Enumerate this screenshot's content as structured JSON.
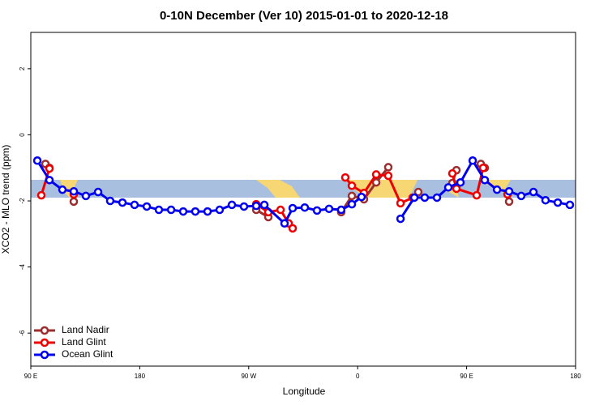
{
  "chart_data": {
    "type": "line",
    "title": "0-10N December (Ver 10)   2015-01-01 to 2020-12-18",
    "x_label": "Longitude",
    "y_label": "XCO2 - MLO trend (ppm)",
    "xlim": [
      90,
      540
    ],
    "xticks": [
      {
        "value": 90,
        "label": "90 E"
      },
      {
        "value": 180,
        "label": "180"
      },
      {
        "value": 270,
        "label": "90 W"
      },
      {
        "value": 360,
        "label": "0"
      },
      {
        "value": 450,
        "label": "90 E"
      },
      {
        "value": 540,
        "label": "180"
      }
    ],
    "ylim": [
      -7,
      3.1
    ],
    "yticks": [
      -6,
      -4,
      -2,
      0,
      2
    ],
    "legend": "bottom-left",
    "series": [
      {
        "name": "Land Nadir",
        "color": "#9b2f2f",
        "x": [
          102.1,
          105.4,
          115,
          125.5,
          200,
          276.2,
          286.2,
          300,
          346.4,
          355.2,
          365.2,
          375.3,
          385.3,
          400,
          410.1,
          425,
          438.2,
          441.6,
          450,
          461.7,
          465,
          475,
          485.1
        ],
        "values": [
          -0.88,
          -1.0,
          null,
          -2.02,
          null,
          -2.27,
          -2.49,
          null,
          -2.34,
          -1.85,
          -1.95,
          -1.44,
          -0.98,
          null,
          -1.73,
          null,
          -1.46,
          -1.07,
          null,
          -0.88,
          -1.0,
          null,
          -2.02
        ]
      },
      {
        "name": "Land Glint",
        "color": "#ee0000",
        "x": [
          98.7,
          105.4,
          115,
          125.5,
          200,
          276.2,
          286.2,
          296.3,
          303,
          306.3,
          330,
          349.8,
          355.2,
          365.2,
          375.3,
          385.3,
          395.4,
          405.4,
          420,
          438.2,
          441.6,
          458.3,
          463.7,
          475,
          483.8
        ],
        "values": [
          -1.83,
          -1.02,
          null,
          -1.8,
          null,
          -2.1,
          -2.34,
          -2.27,
          -2.68,
          -2.83,
          null,
          -1.29,
          -1.54,
          -1.76,
          -1.2,
          -1.24,
          -2.07,
          -1.9,
          null,
          -1.17,
          -1.63,
          -1.83,
          -1.0,
          null,
          -1.8
        ]
      },
      {
        "name": "Ocean Glint",
        "color": "#0000ee",
        "x": [
          95.4,
          105.4,
          116.1,
          125.5,
          135.5,
          145.6,
          155.6,
          165.7,
          175.7,
          185.8,
          195.8,
          205.9,
          215.9,
          225.9,
          236.0,
          246.0,
          256.1,
          266.1,
          276.2,
          282.9,
          299.6,
          306.3,
          316.3,
          326.4,
          336.4,
          346.4,
          355.2,
          363.2,
          380,
          395.4,
          406.8,
          415.4,
          425.5,
          434.9,
          444.9,
          455.0,
          465.0,
          475.1,
          485.1,
          495.1,
          505.2,
          515.2,
          525.3,
          535.3
        ],
        "values": [
          -0.78,
          -1.37,
          -1.66,
          -1.71,
          -1.85,
          -1.73,
          -2.0,
          -2.05,
          -2.12,
          -2.17,
          -2.27,
          -2.27,
          -2.32,
          -2.32,
          -2.32,
          -2.27,
          -2.12,
          -2.17,
          -2.15,
          -2.12,
          -2.68,
          -2.22,
          -2.2,
          -2.29,
          -2.24,
          -2.27,
          -2.1,
          -1.88,
          null,
          -2.54,
          -1.9,
          -1.9,
          -1.9,
          -1.59,
          -1.44,
          -0.78,
          -1.37,
          -1.66,
          -1.71,
          -1.85,
          -1.73,
          -1.98,
          -2.05,
          -2.12
        ]
      }
    ]
  }
}
